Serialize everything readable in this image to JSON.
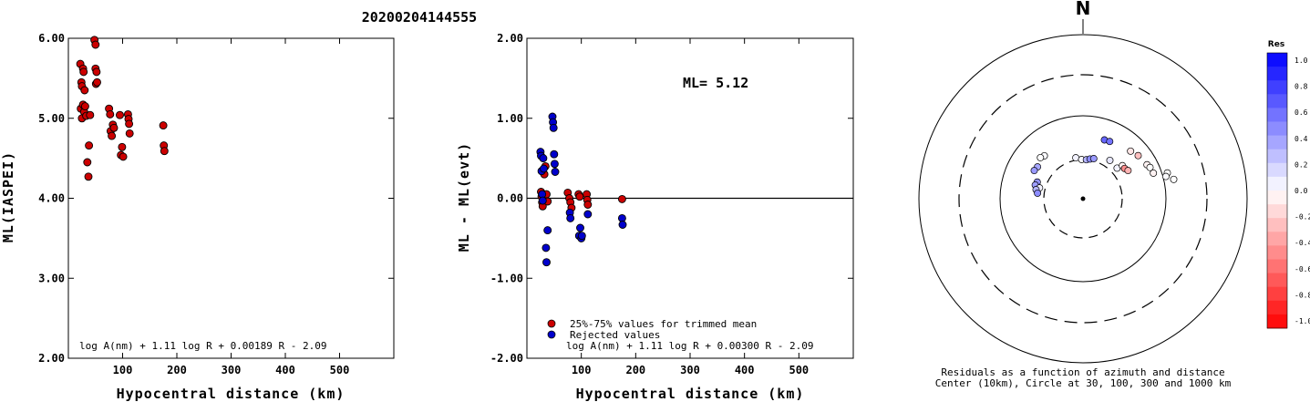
{
  "title": "20200204144555",
  "colors": {
    "red": "#cc0000",
    "blue": "#0000cc",
    "black": "#000000"
  },
  "chart_data": [
    {
      "type": "scatter",
      "xlabel": "Hypocentral distance (km)",
      "ylabel": "ML(IASPEI)",
      "formula": "log A(nm) + 1.11 log R + 0.00189 R - 2.09",
      "xlim": [
        0,
        600
      ],
      "ylim": [
        2.0,
        6.0
      ],
      "xticks": [
        "100",
        "200",
        "300",
        "400",
        "500"
      ],
      "yticks": [
        "2.00",
        "3.00",
        "4.00",
        "5.00",
        "6.00"
      ],
      "points": [
        [
          22,
          5.68
        ],
        [
          24,
          5.45
        ],
        [
          25,
          5.4
        ],
        [
          27,
          5.62
        ],
        [
          28,
          5.58
        ],
        [
          30,
          5.35
        ],
        [
          23,
          5.12
        ],
        [
          25,
          5.0
        ],
        [
          27,
          5.17
        ],
        [
          29,
          5.08
        ],
        [
          31,
          5.15
        ],
        [
          33,
          5.03
        ],
        [
          35,
          4.45
        ],
        [
          37,
          4.27
        ],
        [
          38,
          4.66
        ],
        [
          40,
          5.04
        ],
        [
          48,
          5.98
        ],
        [
          50,
          5.92
        ],
        [
          50,
          5.62
        ],
        [
          52,
          5.58
        ],
        [
          51,
          5.43
        ],
        [
          53,
          5.45
        ],
        [
          75,
          5.12
        ],
        [
          77,
          5.05
        ],
        [
          78,
          4.84
        ],
        [
          80,
          4.78
        ],
        [
          82,
          4.92
        ],
        [
          84,
          4.88
        ],
        [
          95,
          5.04
        ],
        [
          97,
          4.54
        ],
        [
          99,
          4.64
        ],
        [
          101,
          4.52
        ],
        [
          110,
          5.05
        ],
        [
          111,
          4.99
        ],
        [
          112,
          4.93
        ],
        [
          113,
          4.81
        ],
        [
          175,
          4.91
        ],
        [
          176,
          4.66
        ],
        [
          177,
          4.59
        ]
      ]
    },
    {
      "type": "scatter",
      "xlabel": "Hypocentral distance (km)",
      "ylabel": "ML - ML(evt)",
      "formula": "log A(nm) + 1.11 log R + 0.00300 R - 2.09",
      "ml_label": "ML= 5.12",
      "xlim": [
        0,
        600
      ],
      "ylim": [
        -2.0,
        2.0
      ],
      "xticks": [
        "100",
        "200",
        "300",
        "400",
        "500"
      ],
      "yticks": [
        "-2.00",
        "-1.00",
        "0.00",
        "1.00",
        "2.00"
      ],
      "legend": [
        {
          "label": "25%-75% values for trimmed mean",
          "color": "red"
        },
        {
          "label": "Rejected values",
          "color": "blue"
        }
      ],
      "series": [
        {
          "color": "red",
          "points": [
            [
              26,
              0.08
            ],
            [
              27,
              0.02
            ],
            [
              28,
              -0.05
            ],
            [
              29,
              -0.1
            ],
            [
              30,
              0.05
            ],
            [
              31,
              0.0
            ],
            [
              32,
              0.3
            ],
            [
              34,
              0.4
            ],
            [
              36,
              0.05
            ],
            [
              38,
              -0.04
            ],
            [
              75,
              0.07
            ],
            [
              78,
              0.0
            ],
            [
              80,
              -0.05
            ],
            [
              82,
              -0.12
            ],
            [
              95,
              0.05
            ],
            [
              97,
              0.02
            ],
            [
              110,
              0.05
            ],
            [
              111,
              -0.02
            ],
            [
              112,
              -0.08
            ],
            [
              175,
              -0.01
            ]
          ]
        },
        {
          "color": "blue",
          "points": [
            [
              25,
              0.58
            ],
            [
              26,
              0.53
            ],
            [
              27,
              0.34
            ],
            [
              28,
              0.05
            ],
            [
              29,
              -0.03
            ],
            [
              30,
              0.5
            ],
            [
              31,
              0.37
            ],
            [
              35,
              -0.62
            ],
            [
              36,
              -0.8
            ],
            [
              38,
              -0.4
            ],
            [
              47,
              1.02
            ],
            [
              48,
              0.95
            ],
            [
              49,
              0.88
            ],
            [
              50,
              0.55
            ],
            [
              51,
              0.43
            ],
            [
              52,
              0.33
            ],
            [
              79,
              -0.18
            ],
            [
              80,
              -0.25
            ],
            [
              96,
              -0.47
            ],
            [
              98,
              -0.37
            ],
            [
              100,
              -0.5
            ],
            [
              101,
              -0.47
            ],
            [
              112,
              -0.2
            ],
            [
              175,
              -0.25
            ],
            [
              176,
              -0.33
            ]
          ]
        }
      ]
    },
    {
      "type": "scatter",
      "subtype": "polar",
      "north_label": "N",
      "caption_line1": "Residuals as a function of azimuth and distance",
      "caption_line2": "Center (10km), Circle at 30, 100, 300 and 1000 km",
      "rings_km": [
        30,
        100,
        300,
        1000
      ],
      "colorbar": {
        "title": "Res",
        "ticks": [
          "1.0",
          "0.8",
          "0.6",
          "0.4",
          "0.2",
          "0.0",
          "-0.2",
          "-0.4",
          "-0.6",
          "-0.8",
          "-1.0"
        ],
        "range": [
          -1.0,
          1.0
        ]
      },
      "stations": [
        {
          "az": 318,
          "dist": 50,
          "res": 0.02
        },
        {
          "az": 314,
          "dist": 52,
          "res": 0.0
        },
        {
          "az": 305,
          "dist": 47,
          "res": 0.35
        },
        {
          "az": 300,
          "dist": 48,
          "res": 0.4
        },
        {
          "az": 290,
          "dist": 39,
          "res": 0.42
        },
        {
          "az": 286,
          "dist": 40,
          "res": 0.38
        },
        {
          "az": 284,
          "dist": 35,
          "res": 0.05
        },
        {
          "az": 281,
          "dist": 38,
          "res": 0.3
        },
        {
          "az": 277,
          "dist": 36,
          "res": 0.45
        },
        {
          "az": 350,
          "dist": 32,
          "res": 0.05
        },
        {
          "az": 358,
          "dist": 30,
          "res": 0.03
        },
        {
          "az": 5,
          "dist": 30,
          "res": 0.3
        },
        {
          "az": 10,
          "dist": 31,
          "res": 0.45
        },
        {
          "az": 15,
          "dist": 32,
          "res": 0.4
        },
        {
          "az": 20,
          "dist": 57,
          "res": 0.6
        },
        {
          "az": 25,
          "dist": 58,
          "res": 0.55
        },
        {
          "az": 35,
          "dist": 37,
          "res": 0.1
        },
        {
          "az": 48,
          "dist": 36,
          "res": 0.05
        },
        {
          "az": 50,
          "dist": 42,
          "res": -0.05
        },
        {
          "az": 54,
          "dist": 42,
          "res": -0.45
        },
        {
          "az": 58,
          "dist": 44,
          "res": -0.3
        },
        {
          "az": 45,
          "dist": 65,
          "res": -0.1
        },
        {
          "az": 52,
          "dist": 70,
          "res": -0.25
        },
        {
          "az": 62,
          "dist": 75,
          "res": -0.05
        },
        {
          "az": 65,
          "dist": 78,
          "res": 0.0
        },
        {
          "az": 70,
          "dist": 80,
          "res": -0.05
        },
        {
          "az": 73,
          "dist": 115,
          "res": 0.0
        },
        {
          "az": 75,
          "dist": 108,
          "res": 0.02
        },
        {
          "az": 78,
          "dist": 130,
          "res": 0.0
        }
      ]
    }
  ]
}
